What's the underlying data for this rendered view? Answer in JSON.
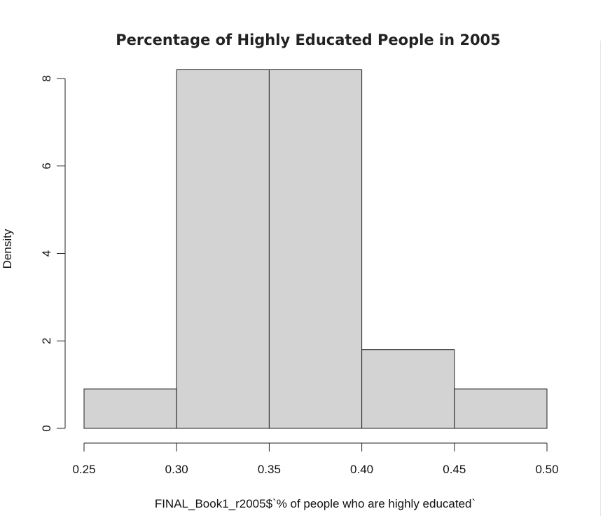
{
  "chart_data": {
    "type": "bar",
    "title": "Percentage of Highly Educated People in 2005",
    "xlabel": "FINAL_Book1_r2005$`% of people who are highly educated`",
    "ylabel": "Density",
    "bins": [
      {
        "start": 0.25,
        "end": 0.3,
        "density": 0.9
      },
      {
        "start": 0.3,
        "end": 0.35,
        "density": 8.2
      },
      {
        "start": 0.35,
        "end": 0.4,
        "density": 8.2
      },
      {
        "start": 0.4,
        "end": 0.45,
        "density": 1.8
      },
      {
        "start": 0.45,
        "end": 0.5,
        "density": 0.9
      }
    ],
    "xlim": [
      0.25,
      0.5
    ],
    "ylim": [
      0,
      8
    ],
    "x_ticks": [
      "0.25",
      "0.30",
      "0.35",
      "0.40",
      "0.45",
      "0.50"
    ],
    "y_ticks": [
      "0",
      "2",
      "4",
      "6",
      "8"
    ],
    "bar_color": "#d3d3d3",
    "border_color": "#222222",
    "grid": false,
    "legend": "none"
  }
}
